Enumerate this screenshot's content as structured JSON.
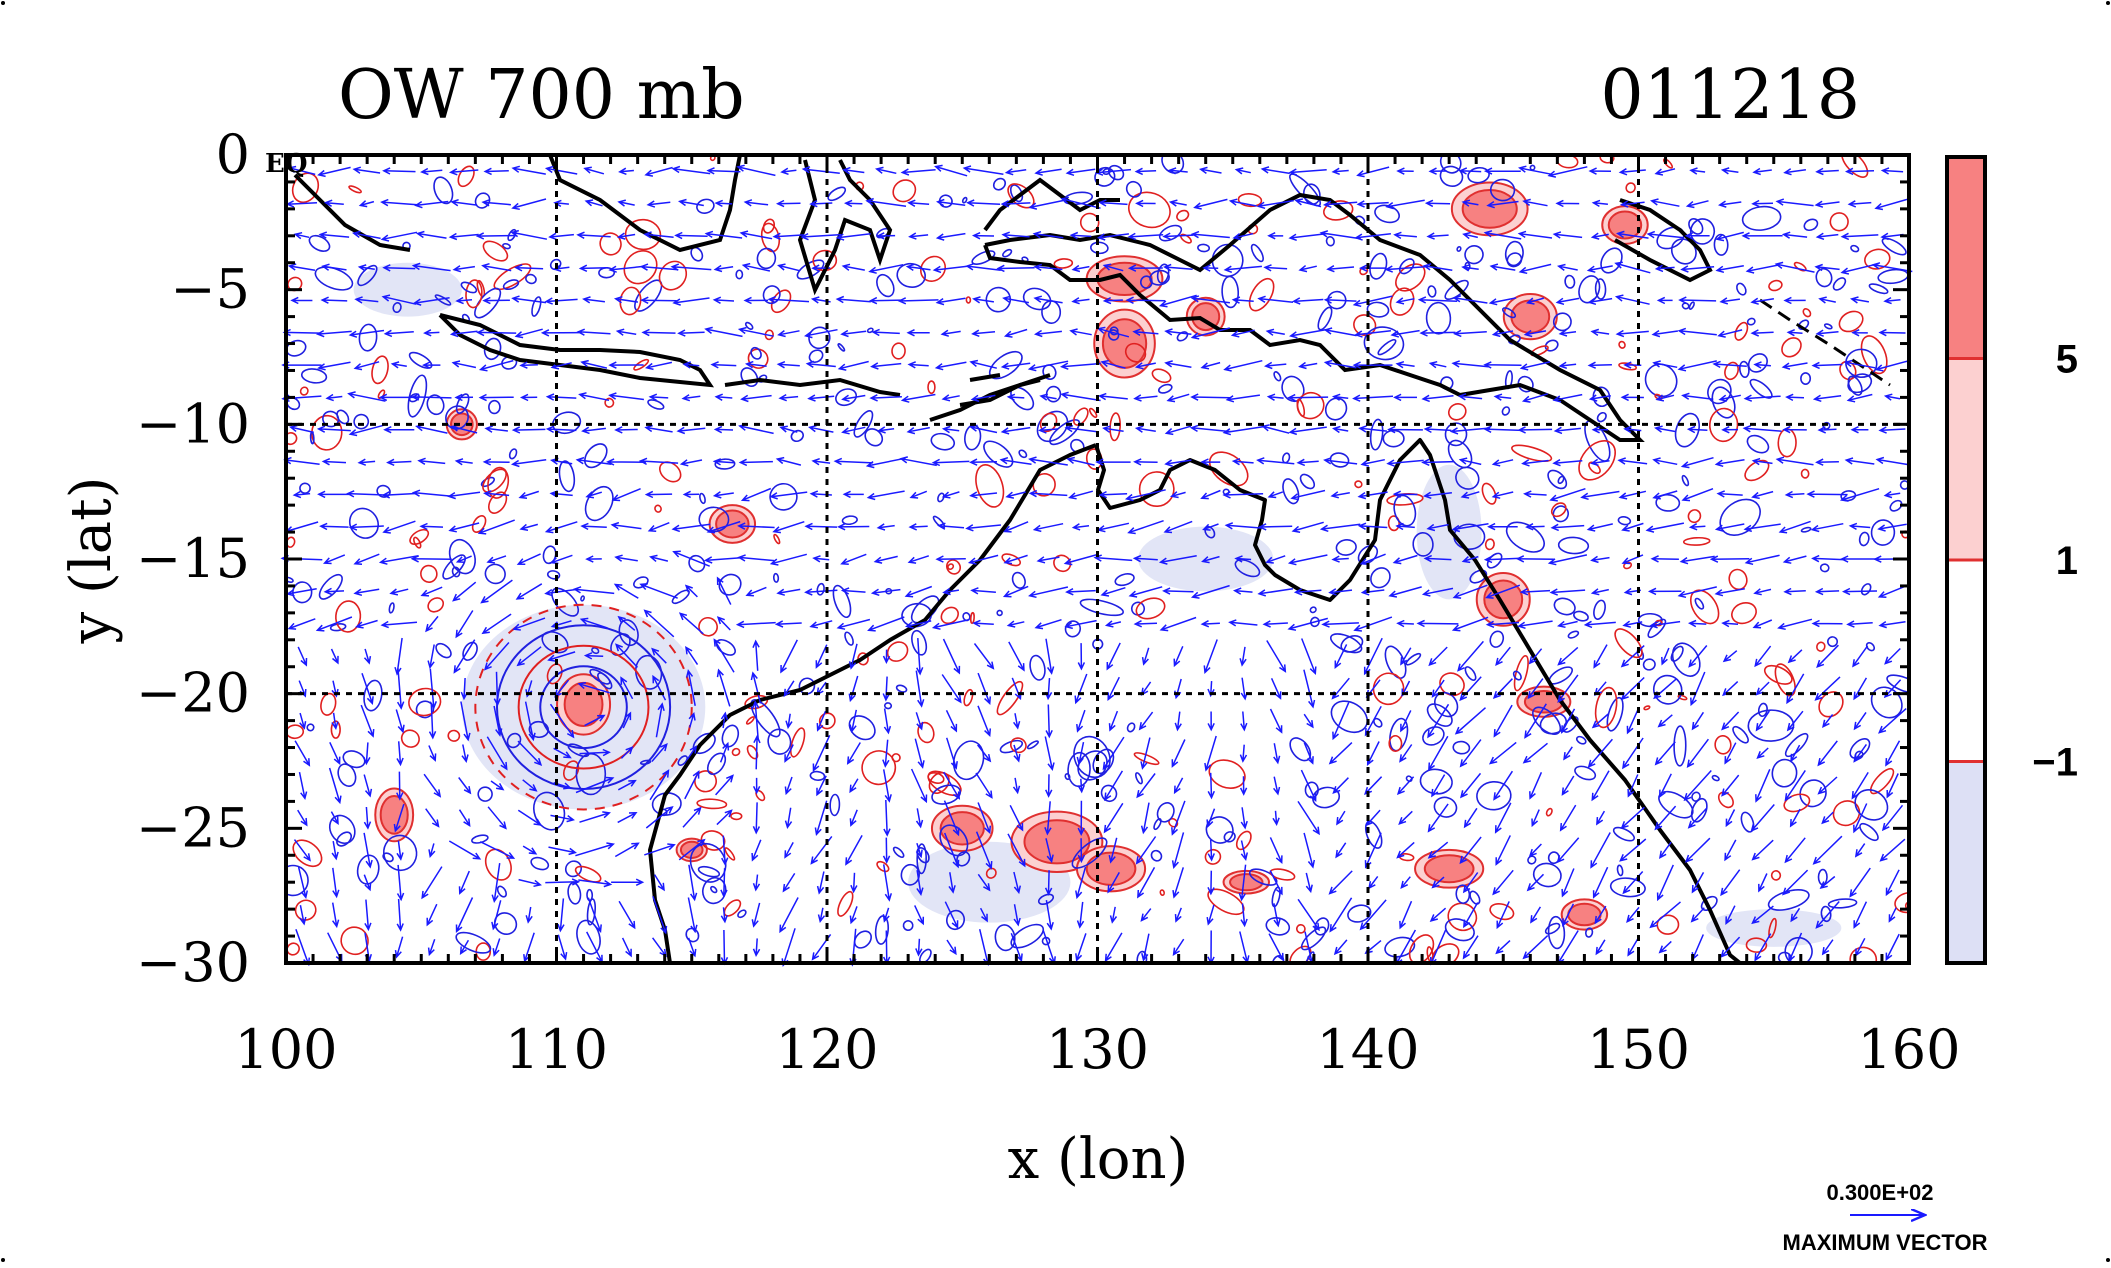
{
  "chart_data": {
    "type": "contour-vector-map",
    "title": "OW 700 mb",
    "date_label": "011218",
    "xlabel": "x (lon)",
    "ylabel": "y (lat)",
    "xlim": [
      100,
      160
    ],
    "ylim": [
      -30,
      0
    ],
    "x_ticks": [
      100,
      110,
      120,
      130,
      140,
      150,
      160
    ],
    "x_tick_labels": [
      "100",
      "110",
      "120",
      "130",
      "140",
      "150",
      "160"
    ],
    "y_ticks": [
      0,
      -5,
      -10,
      -15,
      -20,
      -25,
      -30
    ],
    "y_tick_labels": [
      "0",
      "−5",
      "−10",
      "−15",
      "−20",
      "−25",
      "−30"
    ],
    "grid_lon": [
      110,
      120,
      130,
      140,
      150
    ],
    "grid_lat": [
      -10,
      -20
    ],
    "corner_label": "EQ",
    "colorbar": {
      "levels": [
        -1,
        1,
        5
      ],
      "level_labels": [
        "−1",
        "1",
        "5"
      ],
      "colors": [
        "#dde0f5",
        "#ffffff",
        "#fcd0d0",
        "#f78181"
      ]
    },
    "vector_legend": {
      "value_label": "0.300E+02",
      "caption": "MAXIMUM VECTOR"
    },
    "features": {
      "positive_ow": [
        {
          "lon": 111,
          "lat": -20.4,
          "rx": 0.7,
          "ry": 0.8
        },
        {
          "lon": 116.5,
          "lat": -13.7,
          "rx": 0.6,
          "ry": 0.5
        },
        {
          "lon": 106.5,
          "lat": -10,
          "rx": 0.4,
          "ry": 0.4
        },
        {
          "lon": 131,
          "lat": -7,
          "rx": 0.8,
          "ry": 0.9
        },
        {
          "lon": 131,
          "lat": -4.6,
          "rx": 1,
          "ry": 0.6
        },
        {
          "lon": 134,
          "lat": -6,
          "rx": 0.5,
          "ry": 0.5
        },
        {
          "lon": 146,
          "lat": -6,
          "rx": 0.7,
          "ry": 0.6
        },
        {
          "lon": 144.5,
          "lat": -2,
          "rx": 1,
          "ry": 0.7
        },
        {
          "lon": 149.5,
          "lat": -2.6,
          "rx": 0.6,
          "ry": 0.5
        },
        {
          "lon": 128.5,
          "lat": -25.5,
          "rx": 1.2,
          "ry": 0.8
        },
        {
          "lon": 130.5,
          "lat": -26.5,
          "rx": 0.9,
          "ry": 0.6
        },
        {
          "lon": 125,
          "lat": -25,
          "rx": 0.8,
          "ry": 0.6
        },
        {
          "lon": 143,
          "lat": -26.5,
          "rx": 0.9,
          "ry": 0.5
        },
        {
          "lon": 145,
          "lat": -16.5,
          "rx": 0.7,
          "ry": 0.7
        },
        {
          "lon": 146.5,
          "lat": -20.3,
          "rx": 0.7,
          "ry": 0.4
        },
        {
          "lon": 135.5,
          "lat": -27,
          "rx": 0.6,
          "ry": 0.3
        },
        {
          "lon": 148,
          "lat": -28.2,
          "rx": 0.6,
          "ry": 0.4
        },
        {
          "lon": 104,
          "lat": -24.5,
          "rx": 0.5,
          "ry": 0.7
        },
        {
          "lon": 115,
          "lat": -25.8,
          "rx": 0.4,
          "ry": 0.3
        }
      ],
      "negative_ow": [
        {
          "lon": 111,
          "lat": -20.5,
          "rx": 4.5,
          "ry": 3.8
        },
        {
          "lon": 143,
          "lat": -14,
          "rx": 1.2,
          "ry": 2.5
        },
        {
          "lon": 134,
          "lat": -15,
          "rx": 2.5,
          "ry": 1.2
        },
        {
          "lon": 155,
          "lat": -28.7,
          "rx": 2.5,
          "ry": 0.7
        },
        {
          "lon": 126,
          "lat": -27,
          "rx": 3,
          "ry": 1.5
        },
        {
          "lon": 104.5,
          "lat": -5,
          "rx": 2,
          "ry": 1
        }
      ],
      "cyclone_center": {
        "lon": 111,
        "lat": -20.5
      }
    }
  }
}
